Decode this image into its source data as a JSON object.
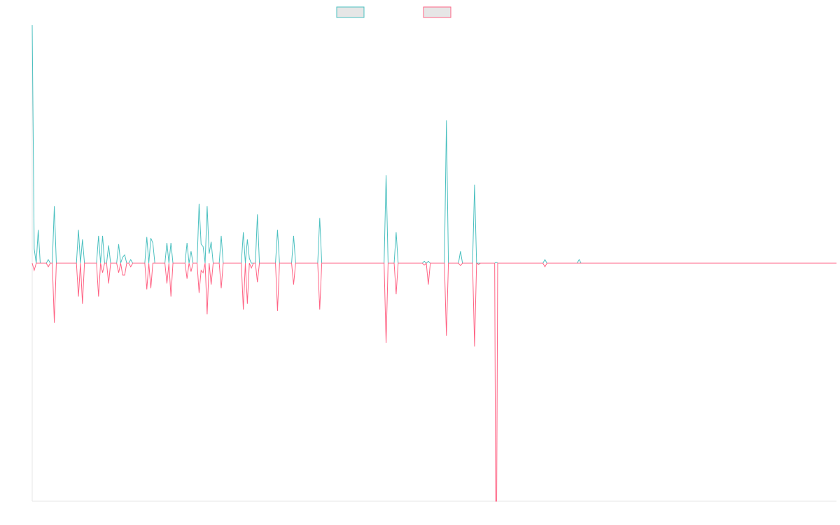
{
  "chart_data": {
    "type": "line",
    "title": "",
    "xlabel": "",
    "ylabel": "",
    "legend_position": "top-center",
    "grid": false,
    "ylim": [
      -1,
      1
    ],
    "x_count": 400,
    "series": [
      {
        "color": "#4bc0c0",
        "legend_fill": "#e6e6e6",
        "points": [
          [
            0,
            1.0
          ],
          [
            1,
            0.06
          ],
          [
            2,
            0.0
          ],
          [
            3,
            0.14
          ],
          [
            4,
            0.0
          ],
          [
            7,
            0.0
          ],
          [
            8,
            0.015
          ],
          [
            9,
            0.0
          ],
          [
            10,
            0.0
          ],
          [
            11,
            0.24
          ],
          [
            12,
            0.0
          ],
          [
            22,
            0.0
          ],
          [
            23,
            0.14
          ],
          [
            24,
            0.0
          ],
          [
            25,
            0.1
          ],
          [
            26,
            0.0
          ],
          [
            32,
            0.0
          ],
          [
            33,
            0.115
          ],
          [
            34,
            0.0
          ],
          [
            35,
            0.115
          ],
          [
            36,
            0.0
          ],
          [
            37,
            0.0
          ],
          [
            38,
            0.075
          ],
          [
            39,
            0.0
          ],
          [
            42,
            0.0
          ],
          [
            43,
            0.08
          ],
          [
            44,
            0.0
          ],
          [
            45,
            0.025
          ],
          [
            46,
            0.035
          ],
          [
            47,
            0.0
          ],
          [
            48,
            0.0
          ],
          [
            49,
            0.015
          ],
          [
            50,
            0.0
          ],
          [
            56,
            0.0
          ],
          [
            57,
            0.11
          ],
          [
            58,
            0.0
          ],
          [
            59,
            0.105
          ],
          [
            60,
            0.085
          ],
          [
            61,
            0.0
          ],
          [
            66,
            0.0
          ],
          [
            67,
            0.085
          ],
          [
            68,
            0.0
          ],
          [
            69,
            0.085
          ],
          [
            70,
            0.0
          ],
          [
            76,
            0.0
          ],
          [
            77,
            0.085
          ],
          [
            78,
            0.0
          ],
          [
            79,
            0.05
          ],
          [
            80,
            0.0
          ],
          [
            82,
            0.0
          ],
          [
            83,
            0.25
          ],
          [
            84,
            0.08
          ],
          [
            85,
            0.07
          ],
          [
            86,
            0.0
          ],
          [
            87,
            0.24
          ],
          [
            88,
            0.04
          ],
          [
            89,
            0.09
          ],
          [
            90,
            0.0
          ],
          [
            93,
            0.0
          ],
          [
            94,
            0.115
          ],
          [
            95,
            0.0
          ],
          [
            104,
            0.0
          ],
          [
            105,
            0.13
          ],
          [
            106,
            0.0
          ],
          [
            107,
            0.1
          ],
          [
            108,
            0.02
          ],
          [
            109,
            0.0
          ],
          [
            111,
            0.0
          ],
          [
            112,
            0.205
          ],
          [
            113,
            0.0
          ],
          [
            121,
            0.0
          ],
          [
            122,
            0.14
          ],
          [
            123,
            0.0
          ],
          [
            129,
            0.0
          ],
          [
            130,
            0.115
          ],
          [
            131,
            0.0
          ],
          [
            142,
            0.0
          ],
          [
            143,
            0.19
          ],
          [
            144,
            0.0
          ],
          [
            175,
            0.0
          ],
          [
            176,
            0.37
          ],
          [
            177,
            0.0
          ],
          [
            180,
            0.0
          ],
          [
            181,
            0.13
          ],
          [
            182,
            0.0
          ],
          [
            194,
            0.0
          ],
          [
            195,
            0.008
          ],
          [
            196,
            0.0
          ],
          [
            197,
            0.008
          ],
          [
            198,
            0.0
          ],
          [
            205,
            0.0
          ],
          [
            206,
            0.6
          ],
          [
            207,
            0.0
          ],
          [
            212,
            0.0
          ],
          [
            213,
            0.05
          ],
          [
            214,
            0.0
          ],
          [
            219,
            0.0
          ],
          [
            220,
            0.33
          ],
          [
            221,
            0.0
          ],
          [
            230,
            0.0
          ],
          [
            230.5,
            0.004
          ],
          [
            231,
            0.004
          ],
          [
            231.5,
            0.0
          ],
          [
            254,
            0.0
          ],
          [
            255,
            0.015
          ],
          [
            256,
            0.0
          ],
          [
            271,
            0.0
          ],
          [
            272,
            0.015
          ],
          [
            273,
            0.0
          ],
          [
            400,
            0.0
          ]
        ]
      },
      {
        "color": "#ff6384",
        "legend_fill": "#e6e6e6",
        "points": [
          [
            0,
            0.0
          ],
          [
            1,
            -0.03
          ],
          [
            2,
            0.0
          ],
          [
            3,
            0.0
          ],
          [
            7,
            0.0
          ],
          [
            8,
            -0.015
          ],
          [
            9,
            0.0
          ],
          [
            10,
            0.0
          ],
          [
            11,
            -0.25
          ],
          [
            12,
            0.0
          ],
          [
            22,
            0.0
          ],
          [
            23,
            -0.14
          ],
          [
            24,
            0.0
          ],
          [
            25,
            -0.17
          ],
          [
            26,
            0.0
          ],
          [
            32,
            0.0
          ],
          [
            33,
            -0.14
          ],
          [
            34,
            0.0
          ],
          [
            35,
            -0.04
          ],
          [
            36,
            0.0
          ],
          [
            37,
            0.0
          ],
          [
            38,
            -0.085
          ],
          [
            39,
            0.0
          ],
          [
            42,
            0.0
          ],
          [
            43,
            -0.04
          ],
          [
            44,
            0.0
          ],
          [
            45,
            -0.05
          ],
          [
            46,
            -0.05
          ],
          [
            47,
            0.0
          ],
          [
            48,
            0.0
          ],
          [
            49,
            -0.015
          ],
          [
            50,
            0.0
          ],
          [
            56,
            0.0
          ],
          [
            57,
            -0.11
          ],
          [
            58,
            0.0
          ],
          [
            59,
            -0.105
          ],
          [
            60,
            0.0
          ],
          [
            66,
            0.0
          ],
          [
            67,
            -0.085
          ],
          [
            68,
            0.0
          ],
          [
            69,
            -0.14
          ],
          [
            70,
            0.0
          ],
          [
            76,
            0.0
          ],
          [
            77,
            -0.065
          ],
          [
            78,
            0.0
          ],
          [
            79,
            -0.035
          ],
          [
            80,
            0.0
          ],
          [
            82,
            0.0
          ],
          [
            83,
            -0.125
          ],
          [
            84,
            -0.03
          ],
          [
            85,
            -0.04
          ],
          [
            86,
            0.0
          ],
          [
            87,
            -0.215
          ],
          [
            88,
            0.0
          ],
          [
            89,
            -0.09
          ],
          [
            90,
            0.0
          ],
          [
            93,
            0.0
          ],
          [
            94,
            -0.105
          ],
          [
            95,
            0.0
          ],
          [
            104,
            0.0
          ],
          [
            105,
            -0.195
          ],
          [
            106,
            0.0
          ],
          [
            107,
            -0.17
          ],
          [
            108,
            0.0
          ],
          [
            109,
            -0.02
          ],
          [
            110,
            0.0
          ],
          [
            111,
            0.0
          ],
          [
            112,
            -0.08
          ],
          [
            113,
            0.0
          ],
          [
            121,
            0.0
          ],
          [
            122,
            -0.2
          ],
          [
            123,
            0.0
          ],
          [
            129,
            0.0
          ],
          [
            130,
            -0.09
          ],
          [
            131,
            0.0
          ],
          [
            142,
            0.0
          ],
          [
            143,
            -0.195
          ],
          [
            144,
            0.0
          ],
          [
            175,
            0.0
          ],
          [
            176,
            -0.335
          ],
          [
            177,
            0.0
          ],
          [
            180,
            0.0
          ],
          [
            181,
            -0.13
          ],
          [
            182,
            0.0
          ],
          [
            194,
            0.0
          ],
          [
            195,
            -0.008
          ],
          [
            196,
            0.0
          ],
          [
            197,
            -0.09
          ],
          [
            198,
            0.0
          ],
          [
            205,
            0.0
          ],
          [
            206,
            -0.305
          ],
          [
            207,
            0.0
          ],
          [
            212,
            0.0
          ],
          [
            213,
            -0.01
          ],
          [
            214,
            0.0
          ],
          [
            219,
            0.0
          ],
          [
            220,
            -0.35
          ],
          [
            221,
            0.0
          ],
          [
            222,
            -0.005
          ],
          [
            223,
            0.0
          ],
          [
            230,
            0.0
          ],
          [
            230.5,
            -1.0
          ],
          [
            231,
            -1.0
          ],
          [
            231.5,
            0.0
          ],
          [
            254,
            0.0
          ],
          [
            255,
            -0.015
          ],
          [
            256,
            0.0
          ],
          [
            400,
            0.0
          ]
        ]
      }
    ]
  }
}
